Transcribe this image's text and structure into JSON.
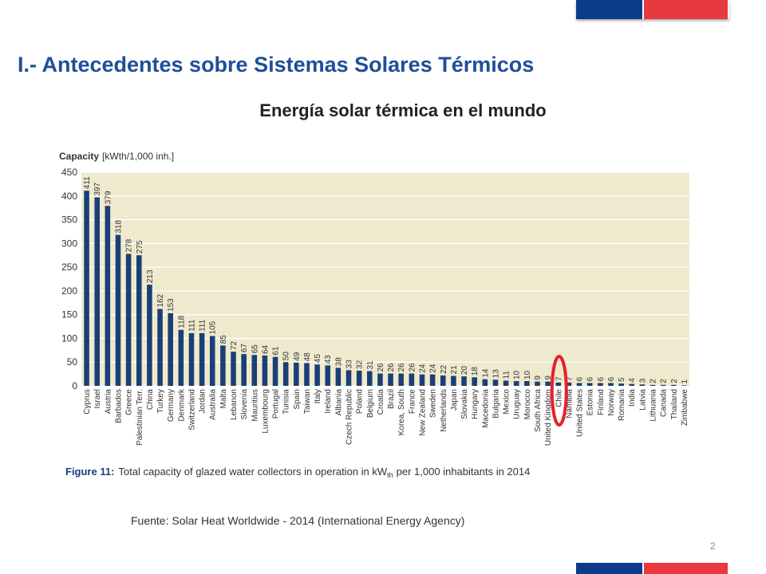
{
  "slide": {
    "title": "I.- Antecedentes sobre Sistemas Solares Térmicos",
    "subtitle": "Energía solar térmica en el mundo",
    "source": "Fuente: Solar Heat Worldwide - 2014 (International Energy Agency)",
    "page_number": "2",
    "colors": {
      "title": "#1f4e9a",
      "flag_blue": "#0b3c8c",
      "flag_red": "#e8393f",
      "highlight": "#e8202a"
    }
  },
  "chart_data": {
    "type": "bar",
    "ylabel_prefix": "Capacity",
    "ylabel_unit": "[kWth/1,000 inh.]",
    "ylim": [
      0,
      450
    ],
    "yticks": [
      0,
      50,
      100,
      150,
      200,
      250,
      300,
      350,
      400,
      450
    ],
    "grid": true,
    "categories": [
      "Cyprus",
      "Israel",
      "Austria",
      "Barbados",
      "Greece",
      "Palestinian Terr.",
      "China",
      "Turkey",
      "Germany",
      "Denmark",
      "Switzerland",
      "Jordan",
      "Australia",
      "Malta",
      "Lebanon",
      "Slovenia",
      "Mauritius",
      "Luxembourg",
      "Portugal",
      "Tunisia",
      "Spain",
      "Taiwan",
      "Italy",
      "Ireland",
      "Albania",
      "Czech Republic",
      "Poland",
      "Belgium",
      "Croatia",
      "Brazil",
      "Korea, South",
      "France",
      "New Zealand",
      "Sweden",
      "Netherlands",
      "Japan",
      "Slovakia",
      "Hungary",
      "Macedonia",
      "Bulgaria",
      "Mexico",
      "Uruguay",
      "Morocco",
      "South Africa",
      "United Kingdom",
      "Chile",
      "Namibia",
      "United States",
      "Estonia",
      "Finland",
      "Norway",
      "Romania",
      "India",
      "Latvia",
      "Lithuania",
      "Canada",
      "Thailand",
      "Zimbabwe"
    ],
    "values": [
      411,
      397,
      379,
      318,
      278,
      275,
      213,
      162,
      153,
      118,
      111,
      111,
      105,
      85,
      72,
      67,
      65,
      64,
      61,
      50,
      49,
      48,
      45,
      43,
      38,
      33,
      32,
      31,
      26,
      26,
      26,
      26,
      24,
      24,
      22,
      21,
      20,
      18,
      14,
      13,
      11,
      10,
      10,
      9,
      9,
      7,
      7,
      6,
      6,
      6,
      6,
      5,
      4,
      3,
      2,
      2,
      2,
      1
    ],
    "highlight_category": "Chile",
    "caption_label": "Figure 11:",
    "caption_text_1": "Total capacity of glazed water collectors in operation in kW",
    "caption_text_sub": "th",
    "caption_text_2": "per 1,000 inhabitants in 2014",
    "colors": {
      "bar": "#1a3f77",
      "plot_bg": "#efe9cd",
      "grid": "#ffffff",
      "axis_text": "#333333"
    }
  }
}
